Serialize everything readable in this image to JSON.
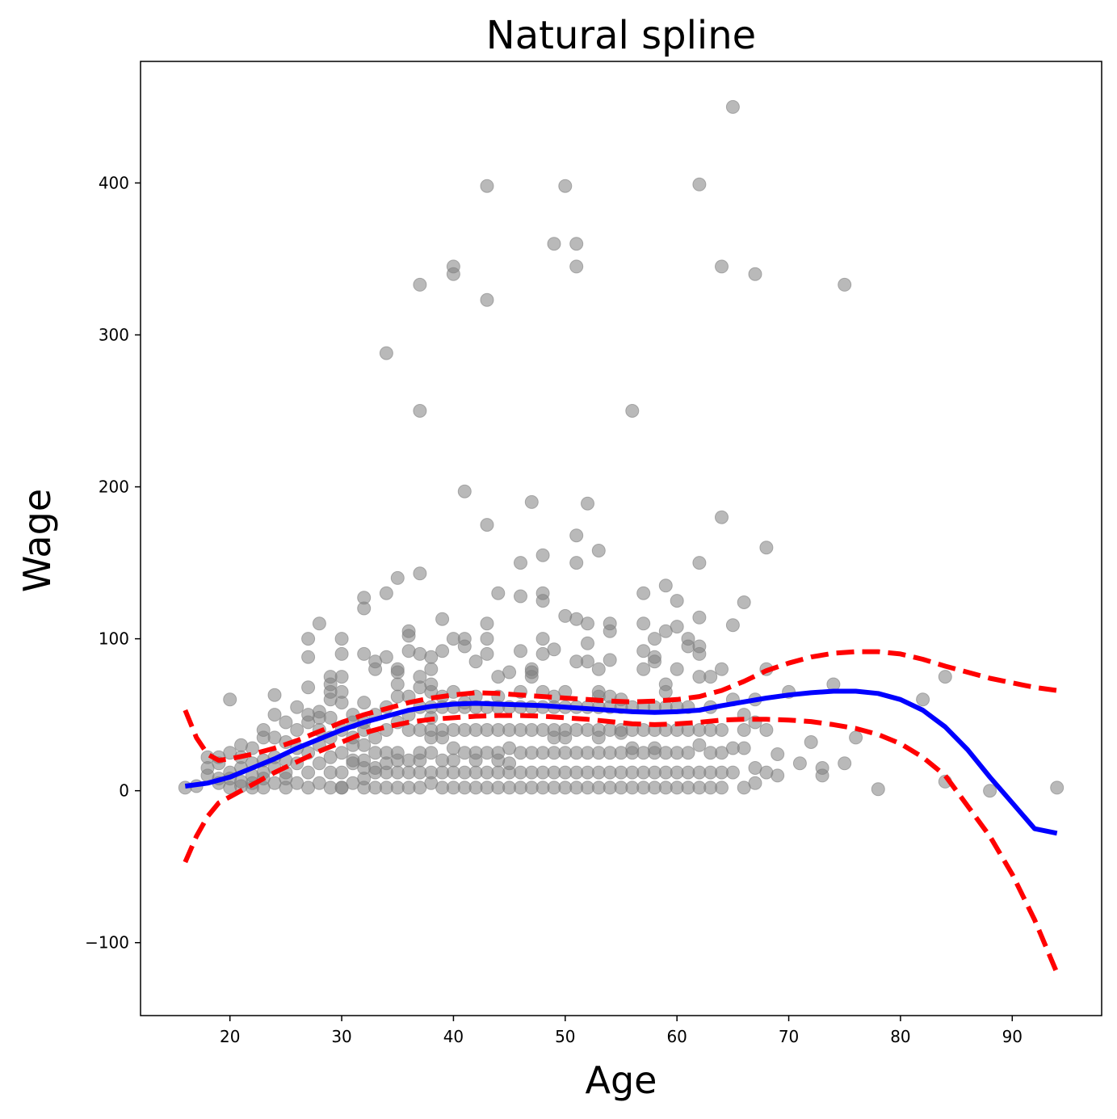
{
  "chart_data": {
    "type": "scatter",
    "title": "Natural spline",
    "xlabel": "Age",
    "ylabel": "Wage",
    "xlim": [
      12,
      98
    ],
    "ylim": [
      -148,
      480
    ],
    "x_ticks": [
      20,
      30,
      40,
      50,
      60,
      70,
      80,
      90
    ],
    "x_tick_labels": [
      "20",
      "30",
      "40",
      "50",
      "60",
      "70",
      "80",
      "90"
    ],
    "y_ticks": [
      -100,
      0,
      100,
      200,
      300,
      400
    ],
    "y_tick_labels": [
      "−100",
      "0",
      "100",
      "200",
      "300",
      "400"
    ],
    "grid": false,
    "colors": {
      "points": "#808080",
      "fit": "#0000ff",
      "band": "#ff0000"
    },
    "series": [
      {
        "kind": "points",
        "x": [
          16,
          17,
          18,
          18,
          18,
          19,
          19,
          19,
          19,
          20,
          20,
          20,
          20,
          20,
          21,
          21,
          21,
          21,
          21,
          22,
          22,
          22,
          22,
          22,
          23,
          23,
          23,
          23,
          23,
          23,
          24,
          24,
          24,
          24,
          24,
          24,
          25,
          25,
          25,
          25,
          25,
          25,
          26,
          26,
          26,
          26,
          26,
          27,
          27,
          27,
          27,
          27,
          27,
          27,
          27,
          28,
          28,
          28,
          28,
          28,
          28,
          28,
          29,
          29,
          29,
          29,
          29,
          29,
          29,
          29,
          29,
          30,
          30,
          30,
          30,
          30,
          30,
          30,
          30,
          30,
          30,
          31,
          31,
          31,
          31,
          31,
          31,
          31,
          32,
          32,
          32,
          32,
          32,
          32,
          32,
          32,
          32,
          32,
          32,
          33,
          33,
          33,
          33,
          33,
          33,
          33,
          33,
          34,
          34,
          34,
          34,
          34,
          34,
          34,
          34,
          34,
          35,
          35,
          35,
          35,
          35,
          35,
          35,
          35,
          35,
          35,
          36,
          36,
          36,
          36,
          36,
          36,
          36,
          36,
          36,
          37,
          37,
          37,
          37,
          37,
          37,
          37,
          37,
          37,
          37,
          37,
          37,
          38,
          38,
          38,
          38,
          38,
          38,
          38,
          38,
          38,
          38,
          38,
          39,
          39,
          39,
          39,
          39,
          39,
          39,
          39,
          39,
          40,
          40,
          40,
          40,
          40,
          40,
          40,
          40,
          40,
          40,
          41,
          41,
          41,
          41,
          41,
          41,
          41,
          41,
          41,
          42,
          42,
          42,
          42,
          42,
          42,
          42,
          42,
          43,
          43,
          43,
          43,
          43,
          43,
          43,
          43,
          43,
          43,
          43,
          44,
          44,
          44,
          44,
          44,
          44,
          44,
          44,
          44,
          45,
          45,
          45,
          45,
          45,
          45,
          45,
          46,
          46,
          46,
          46,
          46,
          46,
          46,
          46,
          46,
          47,
          47,
          47,
          47,
          47,
          47,
          47,
          47,
          47,
          48,
          48,
          48,
          48,
          48,
          48,
          48,
          48,
          48,
          48,
          48,
          49,
          49,
          49,
          49,
          49,
          49,
          49,
          49,
          49,
          50,
          50,
          50,
          50,
          50,
          50,
          50,
          50,
          50,
          51,
          51,
          51,
          51,
          51,
          51,
          51,
          51,
          51,
          51,
          51,
          52,
          52,
          52,
          52,
          52,
          52,
          52,
          52,
          52,
          53,
          53,
          53,
          53,
          53,
          53,
          53,
          53,
          53,
          53,
          54,
          54,
          54,
          54,
          54,
          54,
          54,
          54,
          54,
          55,
          55,
          55,
          55,
          55,
          55,
          55,
          56,
          56,
          56,
          56,
          56,
          56,
          56,
          57,
          57,
          57,
          57,
          57,
          57,
          57,
          57,
          57,
          58,
          58,
          58,
          58,
          58,
          58,
          58,
          58,
          58,
          59,
          59,
          59,
          59,
          59,
          59,
          59,
          59,
          59,
          60,
          60,
          60,
          60,
          60,
          60,
          60,
          60,
          61,
          61,
          61,
          61,
          61,
          61,
          61,
          62,
          62,
          62,
          62,
          62,
          62,
          62,
          62,
          62,
          62,
          63,
          63,
          63,
          63,
          63,
          63,
          64,
          64,
          64,
          64,
          64,
          64,
          64,
          65,
          65,
          65,
          65,
          65,
          66,
          66,
          66,
          66,
          66,
          67,
          67,
          67,
          67,
          67,
          68,
          68,
          68,
          68,
          69,
          69,
          70,
          71,
          72,
          73,
          73,
          74,
          75,
          75,
          76,
          78,
          82,
          84,
          84,
          88,
          94
        ],
        "y": [
          2,
          3,
          22,
          10,
          15,
          5,
          18,
          22,
          8,
          60,
          2,
          12,
          25,
          8,
          30,
          3,
          15,
          22,
          6,
          2,
          18,
          28,
          10,
          5,
          40,
          2,
          12,
          20,
          35,
          8,
          63,
          5,
          22,
          35,
          50,
          15,
          45,
          2,
          12,
          20,
          32,
          8,
          55,
          5,
          18,
          28,
          40,
          100,
          88,
          45,
          2,
          12,
          25,
          50,
          68,
          110,
          5,
          18,
          30,
          40,
          52,
          48,
          75,
          2,
          12,
          22,
          35,
          48,
          60,
          70,
          65,
          100,
          90,
          2,
          12,
          25,
          40,
          58,
          65,
          75,
          2,
          50,
          5,
          18,
          30,
          45,
          20,
          35,
          127,
          120,
          90,
          2,
          15,
          30,
          45,
          58,
          8,
          20,
          40,
          85,
          80,
          2,
          12,
          25,
          35,
          50,
          15,
          288,
          130,
          88,
          2,
          12,
          25,
          40,
          55,
          18,
          140,
          80,
          62,
          2,
          12,
          25,
          45,
          70,
          78,
          20,
          102,
          92,
          105,
          2,
          12,
          20,
          40,
          50,
          62,
          333,
          250,
          143,
          90,
          2,
          12,
          20,
          40,
          55,
          68,
          75,
          25,
          88,
          80,
          5,
          12,
          25,
          40,
          55,
          65,
          70,
          35,
          48,
          113,
          92,
          2,
          12,
          20,
          40,
          55,
          62,
          35,
          345,
          340,
          100,
          2,
          12,
          28,
          40,
          55,
          65,
          20,
          197,
          100,
          95,
          2,
          12,
          25,
          40,
          55,
          58,
          85,
          2,
          12,
          25,
          40,
          55,
          62,
          20,
          398,
          323,
          175,
          110,
          100,
          90,
          2,
          12,
          25,
          40,
          55,
          130,
          75,
          2,
          12,
          25,
          40,
          55,
          62,
          20,
          78,
          18,
          2,
          12,
          28,
          40,
          55,
          150,
          128,
          92,
          2,
          12,
          25,
          40,
          55,
          65,
          78,
          2,
          12,
          25,
          40,
          55,
          75,
          80,
          190,
          155,
          125,
          100,
          90,
          2,
          12,
          25,
          40,
          55,
          65,
          130,
          93,
          2,
          12,
          25,
          40,
          55,
          62,
          35,
          360,
          115,
          2,
          12,
          25,
          40,
          55,
          65,
          35,
          398,
          345,
          168,
          150,
          113,
          85,
          2,
          12,
          25,
          40,
          55,
          360,
          110,
          97,
          85,
          2,
          12,
          25,
          40,
          55,
          189,
          80,
          2,
          12,
          25,
          40,
          55,
          62,
          65,
          35,
          158,
          110,
          105,
          2,
          12,
          25,
          40,
          55,
          62,
          86,
          2,
          12,
          25,
          40,
          55,
          38,
          60,
          2,
          12,
          25,
          40,
          55,
          28,
          250,
          130,
          110,
          80,
          2,
          12,
          25,
          40,
          55,
          92,
          88,
          2,
          12,
          25,
          40,
          55,
          28,
          100,
          85,
          2,
          12,
          25,
          40,
          55,
          70,
          65,
          135,
          105,
          80,
          2,
          12,
          25,
          40,
          55,
          125,
          108,
          100,
          95,
          2,
          12,
          25,
          40,
          55,
          399,
          150,
          114,
          95,
          90,
          75,
          2,
          12,
          30,
          40,
          75,
          2,
          12,
          25,
          40,
          55,
          345,
          180,
          80,
          2,
          12,
          25,
          40,
          450,
          109,
          60,
          12,
          28,
          124,
          2,
          28,
          40,
          50,
          340,
          60,
          15,
          5,
          45,
          160,
          80,
          12,
          40,
          24,
          10,
          65,
          18,
          32,
          15,
          10,
          70,
          333,
          18,
          35,
          1,
          60,
          6,
          75,
          0,
          2
        ]
      },
      {
        "kind": "fit",
        "x": [
          16,
          18,
          20,
          22,
          24,
          26,
          28,
          30,
          32,
          34,
          36,
          38,
          40,
          42,
          44,
          46,
          48,
          50,
          52,
          54,
          56,
          58,
          60,
          62,
          64,
          66,
          68,
          70,
          72,
          74,
          76,
          78,
          80,
          82,
          84,
          86,
          88,
          90,
          92,
          94
        ],
        "y": [
          3,
          5,
          9,
          15,
          21,
          28,
          34,
          40,
          45,
          49,
          53,
          55.5,
          57,
          57.5,
          57,
          56.5,
          56,
          55,
          54,
          53,
          52,
          51.5,
          52,
          53,
          56,
          58.5,
          61,
          63,
          64.5,
          65.5,
          65.5,
          64,
          60,
          53,
          42,
          27,
          9,
          -8,
          -25,
          -28
        ]
      },
      {
        "kind": "upper",
        "x": [
          16,
          17,
          18,
          19,
          20,
          22,
          24,
          26,
          28,
          30,
          32,
          34,
          36,
          38,
          40,
          42,
          44,
          46,
          48,
          50,
          52,
          54,
          56,
          58,
          60,
          62,
          64,
          66,
          68,
          70,
          72,
          74,
          76,
          78,
          80,
          82,
          84,
          86,
          88,
          90,
          92,
          94
        ],
        "y": [
          53,
          35,
          24,
          20,
          21,
          24,
          28,
          33,
          39,
          45,
          50,
          54,
          58,
          61,
          63,
          64.5,
          64,
          63,
          62,
          61,
          60,
          59,
          58.5,
          59,
          60,
          62,
          66,
          72,
          79,
          84,
          88,
          90.5,
          91.5,
          91.5,
          90,
          86.5,
          82,
          78,
          74,
          71,
          68,
          66
        ]
      },
      {
        "kind": "lower",
        "x": [
          16,
          17,
          18,
          19,
          20,
          22,
          24,
          26,
          28,
          30,
          32,
          34,
          36,
          38,
          40,
          42,
          44,
          46,
          48,
          50,
          52,
          54,
          56,
          58,
          60,
          62,
          64,
          66,
          68,
          70,
          72,
          74,
          76,
          78,
          80,
          82,
          84,
          86,
          88,
          90,
          92,
          94
        ],
        "y": [
          -47,
          -30,
          -17,
          -8,
          -4,
          4,
          12,
          19,
          26,
          32,
          38,
          42,
          45,
          47,
          48,
          49,
          49.5,
          49.5,
          49,
          48,
          47,
          45.5,
          44,
          43.5,
          44,
          45,
          46.5,
          47,
          47,
          46.5,
          45.5,
          43.5,
          41,
          37,
          31,
          22,
          10,
          -10,
          -30,
          -55,
          -85,
          -120
        ]
      }
    ]
  }
}
